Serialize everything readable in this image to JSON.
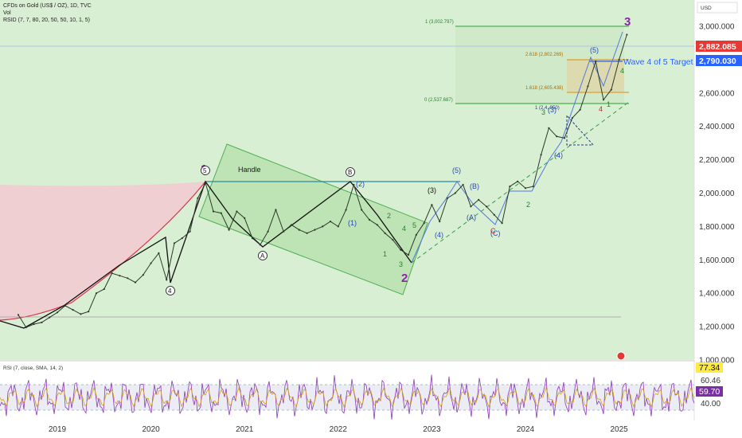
{
  "header": {
    "symbol_line": "CFDs on Gold (US$ / OZ), 1D, TVC",
    "vol_label": "Vol",
    "rsid_label": "RSID (7, 7, 80, 20, 50, 50, 10, 1, 5)",
    "currency": "USD"
  },
  "chart_data": {
    "type": "line",
    "title": "",
    "x_ticks": [
      "2019",
      "2020",
      "2021",
      "2022",
      "2023",
      "2024",
      "2025"
    ],
    "y_ticks": [
      "3,000.000",
      "2,800.000",
      "2,600.000",
      "2,400.000",
      "2,200.000",
      "2,000.000",
      "1,800.000",
      "1,600.000",
      "1,400.000",
      "1,200.000",
      "1,000.000"
    ],
    "ylim": [
      1000,
      3100
    ],
    "price_labels": {
      "last": "2,882.085",
      "target": "2,790.030"
    },
    "series": [
      {
        "values": [
          {
            "x": "2018-08",
            "y": 1270
          },
          {
            "x": "2018-09",
            "y": 1195
          },
          {
            "x": "2018-10",
            "y": 1215
          },
          {
            "x": "2018-11",
            "y": 1225
          },
          {
            "x": "2018-12",
            "y": 1255
          },
          {
            "x": "2019-01",
            "y": 1285
          },
          {
            "x": "2019-02",
            "y": 1325
          },
          {
            "x": "2019-03",
            "y": 1300
          },
          {
            "x": "2019-04",
            "y": 1275
          },
          {
            "x": "2019-05",
            "y": 1290
          },
          {
            "x": "2019-06",
            "y": 1400
          },
          {
            "x": "2019-07",
            "y": 1425
          },
          {
            "x": "2019-08",
            "y": 1520
          },
          {
            "x": "2019-09",
            "y": 1505
          },
          {
            "x": "2019-10",
            "y": 1490
          },
          {
            "x": "2019-11",
            "y": 1465
          },
          {
            "x": "2019-12",
            "y": 1510
          },
          {
            "x": "2020-01",
            "y": 1580
          },
          {
            "x": "2020-02",
            "y": 1640
          },
          {
            "x": "2020-03",
            "y": 1480
          },
          {
            "x": "2020-04",
            "y": 1700
          },
          {
            "x": "2020-05",
            "y": 1730
          },
          {
            "x": "2020-06",
            "y": 1770
          },
          {
            "x": "2020-07",
            "y": 1970
          },
          {
            "x": "2020-08",
            "y": 2060
          },
          {
            "x": "2020-09",
            "y": 1890
          },
          {
            "x": "2020-10",
            "y": 1880
          },
          {
            "x": "2020-11",
            "y": 1780
          },
          {
            "x": "2020-12",
            "y": 1890
          },
          {
            "x": "2021-01",
            "y": 1850
          },
          {
            "x": "2021-02",
            "y": 1730
          },
          {
            "x": "2021-03",
            "y": 1690
          },
          {
            "x": "2021-04",
            "y": 1770
          },
          {
            "x": "2021-05",
            "y": 1900
          },
          {
            "x": "2021-06",
            "y": 1770
          },
          {
            "x": "2021-07",
            "y": 1810
          },
          {
            "x": "2021-08",
            "y": 1780
          },
          {
            "x": "2021-09",
            "y": 1760
          },
          {
            "x": "2021-10",
            "y": 1780
          },
          {
            "x": "2021-11",
            "y": 1800
          },
          {
            "x": "2021-12",
            "y": 1830
          },
          {
            "x": "2022-01",
            "y": 1800
          },
          {
            "x": "2022-02",
            "y": 1900
          },
          {
            "x": "2022-03",
            "y": 2050
          },
          {
            "x": "2022-04",
            "y": 1900
          },
          {
            "x": "2022-05",
            "y": 1840
          },
          {
            "x": "2022-06",
            "y": 1810
          },
          {
            "x": "2022-07",
            "y": 1760
          },
          {
            "x": "2022-08",
            "y": 1720
          },
          {
            "x": "2022-09",
            "y": 1660
          },
          {
            "x": "2022-10",
            "y": 1630
          },
          {
            "x": "2022-11",
            "y": 1750
          },
          {
            "x": "2022-12",
            "y": 1820
          },
          {
            "x": "2023-01",
            "y": 1930
          },
          {
            "x": "2023-02",
            "y": 1830
          },
          {
            "x": "2023-03",
            "y": 1970
          },
          {
            "x": "2023-04",
            "y": 2000
          },
          {
            "x": "2023-05",
            "y": 2050
          },
          {
            "x": "2023-06",
            "y": 1920
          },
          {
            "x": "2023-07",
            "y": 1960
          },
          {
            "x": "2023-08",
            "y": 1920
          },
          {
            "x": "2023-09",
            "y": 1870
          },
          {
            "x": "2023-10",
            "y": 1820
          },
          {
            "x": "2023-11",
            "y": 2040
          },
          {
            "x": "2023-12",
            "y": 2070
          },
          {
            "x": "2024-01",
            "y": 2030
          },
          {
            "x": "2024-02",
            "y": 2040
          },
          {
            "x": "2024-03",
            "y": 2230
          },
          {
            "x": "2024-04",
            "y": 2390
          },
          {
            "x": "2024-05",
            "y": 2340
          },
          {
            "x": "2024-06",
            "y": 2330
          },
          {
            "x": "2024-07",
            "y": 2450
          },
          {
            "x": "2024-08",
            "y": 2500
          },
          {
            "x": "2024-09",
            "y": 2640
          },
          {
            "x": "2024-10",
            "y": 2790
          },
          {
            "x": "2024-11",
            "y": 2560
          },
          {
            "x": "2024-12",
            "y": 2620
          },
          {
            "x": "2025-01",
            "y": 2800
          },
          {
            "x": "2025-02",
            "y": 2950
          }
        ]
      }
    ],
    "annotations": {
      "channel_label": "Handle",
      "wave_target": "Wave 4 of 5 Target",
      "fib_levels": [
        "1 (3,002.797)",
        "2.618 (2,802.269)",
        "1.618 (2,605.438)",
        "0 (2,537.687)",
        "1 (2,4..950)"
      ],
      "wave_labels": [
        "1",
        "2",
        "3",
        "5",
        "4",
        "B",
        "A",
        "(5)",
        "(4)",
        "(3)",
        "(2)",
        "(1)",
        "(B)",
        "(A)",
        "(C)",
        "C",
        "3",
        "4",
        "5",
        "2",
        "1",
        "(5)",
        "(4)",
        "(3)",
        "4",
        "2",
        "4",
        "3",
        "1"
      ]
    },
    "rsi": {
      "label": "RSI (7, close, SMA, 14, 2)",
      "ticks": [
        "60.46",
        "40.00"
      ],
      "value_rsi": "77.34",
      "value_sma": "59.70"
    }
  }
}
